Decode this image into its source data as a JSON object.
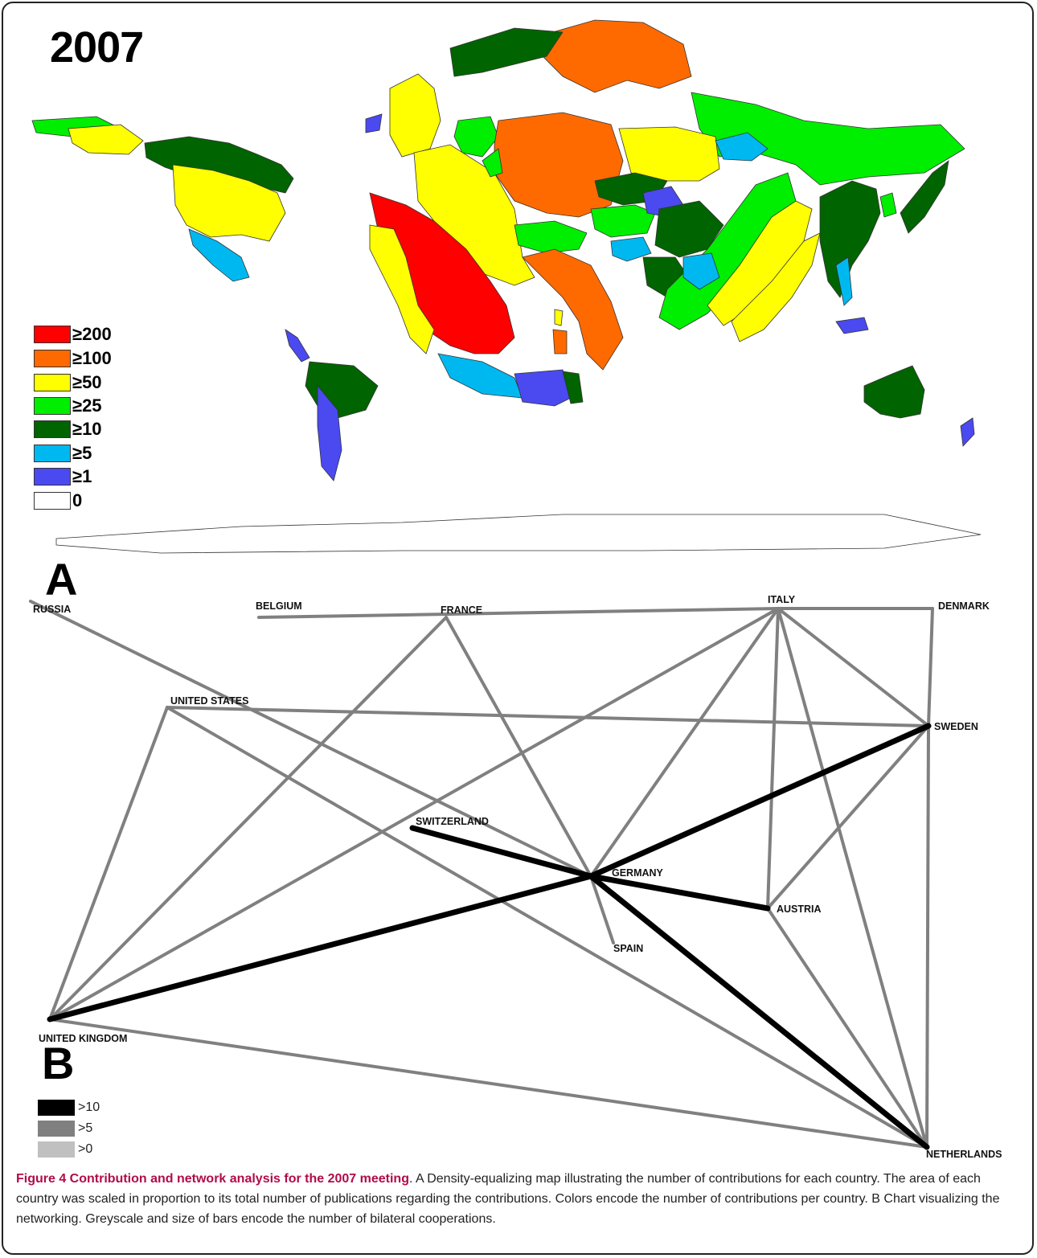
{
  "year_title": "2007",
  "map_legend": [
    {
      "label": "≥200",
      "color": "#ff0000"
    },
    {
      "label": "≥100",
      "color": "#ff6a00"
    },
    {
      "label": "≥50",
      "color": "#ffff00"
    },
    {
      "label": "≥25",
      "color": "#00ee00"
    },
    {
      "label": "≥10",
      "color": "#006400"
    },
    {
      "label": "≥5",
      "color": "#00b8f0"
    },
    {
      "label": "≥1",
      "color": "#4a4af0"
    },
    {
      "label": "0",
      "color": "#ffffff"
    }
  ],
  "panel_a_label": "A",
  "panel_b_label": "B",
  "network": {
    "nodes": {
      "russia": "RUSSIA",
      "belgium": "BELGIUM",
      "france": "FRANCE",
      "italy": "ITALY",
      "denmark": "DENMARK",
      "united_states": "UNITED STATES",
      "sweden": "SWEDEN",
      "switzerland": "SWITZERLAND",
      "germany": "GERMANY",
      "austria": "AUSTRIA",
      "spain": "SPAIN",
      "united_kingdom": "UNITED KINGDOM",
      "netherlands": "NETHERLANDS"
    },
    "edges": [
      {
        "from": "russia",
        "to": "germany",
        "weight": ">5"
      },
      {
        "from": "belgium",
        "to": "italy",
        "weight": ">5"
      },
      {
        "from": "italy",
        "to": "denmark",
        "weight": ">5"
      },
      {
        "from": "denmark",
        "to": "sweden",
        "weight": ">5"
      },
      {
        "from": "italy",
        "to": "sweden",
        "weight": ">5"
      },
      {
        "from": "italy",
        "to": "austria",
        "weight": ">5"
      },
      {
        "from": "italy",
        "to": "netherlands",
        "weight": ">5"
      },
      {
        "from": "italy",
        "to": "germany",
        "weight": ">5"
      },
      {
        "from": "italy",
        "to": "united_kingdom",
        "weight": ">5"
      },
      {
        "from": "france",
        "to": "germany",
        "weight": ">5"
      },
      {
        "from": "france",
        "to": "united_kingdom",
        "weight": ">5"
      },
      {
        "from": "united_states",
        "to": "sweden",
        "weight": ">5"
      },
      {
        "from": "united_states",
        "to": "united_kingdom",
        "weight": ">5"
      },
      {
        "from": "united_states",
        "to": "netherlands",
        "weight": ">5"
      },
      {
        "from": "sweden",
        "to": "netherlands",
        "weight": ">5"
      },
      {
        "from": "sweden",
        "to": "austria",
        "weight": ">5"
      },
      {
        "from": "austria",
        "to": "netherlands",
        "weight": ">5"
      },
      {
        "from": "germany",
        "to": "spain",
        "weight": ">5"
      },
      {
        "from": "united_kingdom",
        "to": "netherlands",
        "weight": ">5"
      },
      {
        "from": "switzerland",
        "to": "germany",
        "weight": ">10"
      },
      {
        "from": "germany",
        "to": "sweden",
        "weight": ">10"
      },
      {
        "from": "germany",
        "to": "austria",
        "weight": ">10"
      },
      {
        "from": "germany",
        "to": "netherlands",
        "weight": ">10"
      },
      {
        "from": "germany",
        "to": "united_kingdom",
        "weight": ">10"
      }
    ],
    "legend": [
      {
        "label": ">10",
        "color": "#000000"
      },
      {
        "label": ">5",
        "color": "#808080"
      },
      {
        "label": ">0",
        "color": "#c0c0c0"
      }
    ]
  },
  "caption": {
    "title": "Figure 4 Contribution and network analysis for the 2007 meeting",
    "body": ". A Density-equalizing map illustrating the number of contributions for each country. The area of each country was scaled in proportion to its total number of publications regarding the contributions. Colors encode the number of contributions per country. B Chart visualizing the networking. Greyscale and size of bars encode the number of bilateral cooperations."
  }
}
